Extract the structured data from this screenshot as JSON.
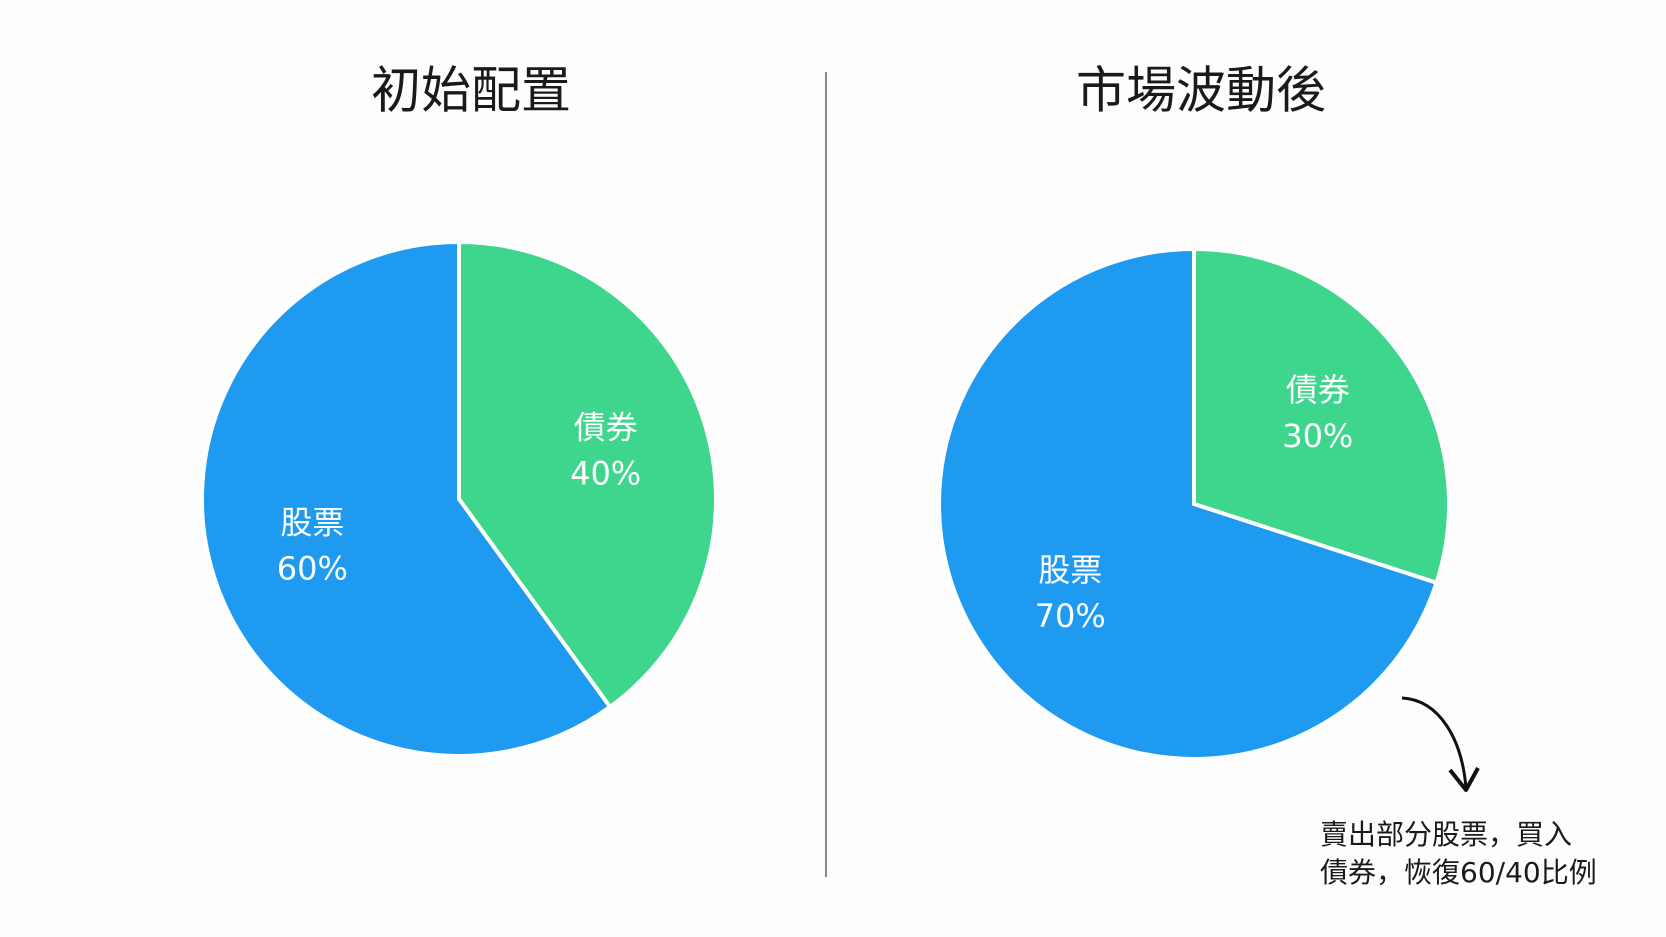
{
  "chart_data": [
    {
      "type": "pie",
      "title": "初始配置",
      "categories": [
        "債券",
        "股票"
      ],
      "values": [
        40,
        60
      ],
      "value_labels": [
        "40%",
        "60%"
      ],
      "colors": [
        "#3dd68c",
        "#1e9bf0"
      ]
    },
    {
      "type": "pie",
      "title": "市場波動後",
      "categories": [
        "債券",
        "股票"
      ],
      "values": [
        30,
        70
      ],
      "value_labels": [
        "30%",
        "70%"
      ],
      "colors": [
        "#3dd68c",
        "#1e9bf0"
      ],
      "annotation": [
        "賣出部分股票，買入",
        "債券，恢復60/40比例"
      ]
    }
  ]
}
